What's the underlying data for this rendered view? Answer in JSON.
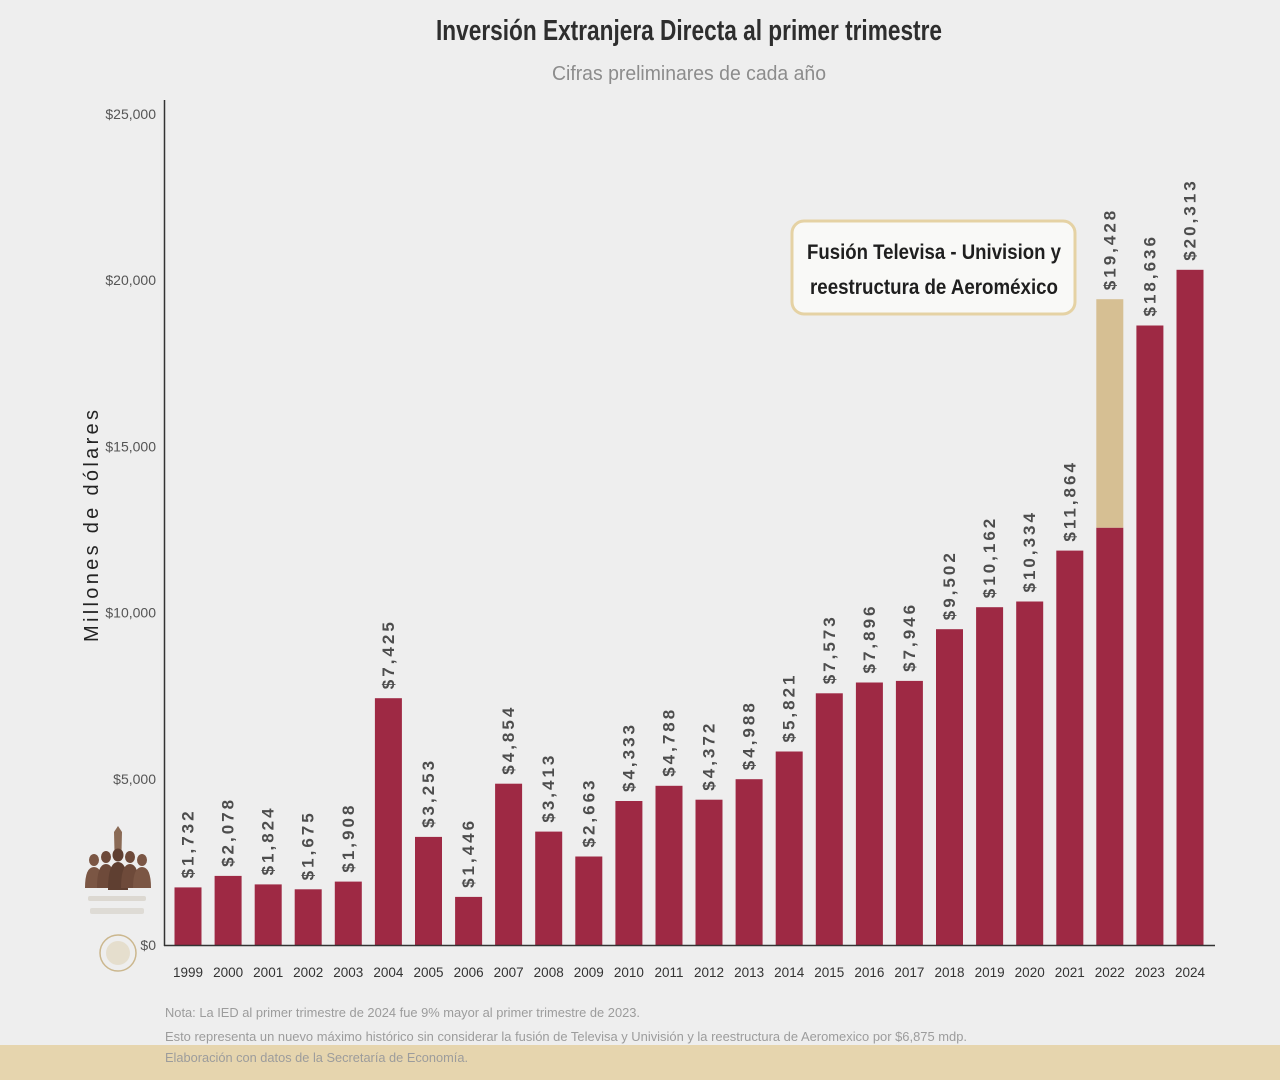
{
  "chart_data": {
    "type": "bar",
    "stacked": true,
    "title": "Inversión Extranjera Directa al primer trimestre",
    "subtitle": "Cifras preliminares de cada año",
    "xlabel": "",
    "ylabel": "Millones de dólares",
    "ylim": [
      0,
      25000
    ],
    "yticks": [
      0,
      5000,
      10000,
      15000,
      20000,
      25000
    ],
    "ytick_labels": [
      "$0",
      "$5,000",
      "$10,000",
      "$15,000",
      "$20,000",
      "$25,000"
    ],
    "grid": false,
    "categories": [
      "1999",
      "2000",
      "2001",
      "2002",
      "2003",
      "2004",
      "2005",
      "2006",
      "2007",
      "2008",
      "2009",
      "2010",
      "2011",
      "2012",
      "2013",
      "2014",
      "2015",
      "2016",
      "2017",
      "2018",
      "2019",
      "2020",
      "2021",
      "2022",
      "2023",
      "2024"
    ],
    "values": [
      1732,
      2078,
      1824,
      1675,
      1908,
      7425,
      3253,
      1446,
      4854,
      3413,
      2663,
      4333,
      4788,
      4372,
      4988,
      5821,
      7573,
      7896,
      7946,
      9502,
      10162,
      10334,
      11864,
      19428,
      18636,
      20313
    ],
    "value_labels": [
      "$1,732",
      "$2,078",
      "$1,824",
      "$1,675",
      "$1,908",
      "$7,425",
      "$3,253",
      "$1,446",
      "$4,854",
      "$3,413",
      "$2,663",
      "$4,333",
      "$4,788",
      "$4,372",
      "$4,988",
      "$5,821",
      "$7,573",
      "$7,896",
      "$7,946",
      "$9,502",
      "$10,162",
      "$10,334",
      "$11,864",
      "$19,428",
      "$18,636",
      "$20,313"
    ],
    "series": [
      {
        "values": [
          1732,
          2078,
          1824,
          1675,
          1908,
          7425,
          3253,
          1446,
          4854,
          3413,
          2663,
          4333,
          4788,
          4372,
          4988,
          5821,
          7573,
          7896,
          7946,
          9502,
          10162,
          10334,
          11864,
          12553,
          18636,
          20313
        ],
        "color": "#9e2944"
      },
      {
        "values": [
          0,
          0,
          0,
          0,
          0,
          0,
          0,
          0,
          0,
          0,
          0,
          0,
          0,
          0,
          0,
          0,
          0,
          0,
          0,
          0,
          0,
          0,
          0,
          6875,
          0,
          0
        ],
        "color": "#d6bf93"
      }
    ],
    "annotation": {
      "lines": [
        "Fusión Televisa - Univision y",
        "reestructura de Aeroméxico"
      ]
    }
  },
  "notes": [
    "Nota: La IED al primer trimestre de 2024 fue 9% mayor al primer trimestre de 2023.",
    "Esto representa un nuevo máximo histórico sin considerar la fusión de Televisa y Univisión y la reestructura de Aeromexico por $6,875 mdp.",
    "Elaboración con datos de la Secretaría de Economía."
  ]
}
